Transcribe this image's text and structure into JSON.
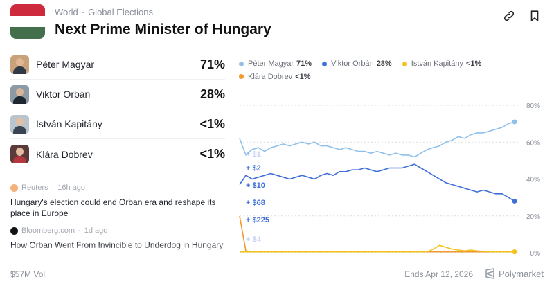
{
  "header": {
    "breadcrumb": [
      "World",
      "Global Elections"
    ],
    "title": "Next Prime Minister of Hungary",
    "flag_colors": [
      "#cd2a3e",
      "#ffffff",
      "#436f4d"
    ]
  },
  "outcomes": [
    {
      "name": "Péter Magyar",
      "pct": "71%",
      "color": "#8fc0ec"
    },
    {
      "name": "Viktor Orbán",
      "pct": "28%",
      "color": "#3f6fd8"
    },
    {
      "name": "István Kapitány",
      "pct": "<1%",
      "color": "#f2c31c"
    },
    {
      "name": "Klára Dobrev",
      "pct": "<1%",
      "color": "#f29a2e"
    }
  ],
  "news": [
    {
      "source": "Reuters",
      "age": "16h ago",
      "headline": "Hungary's election could end Orban era and reshape its place in Europe"
    },
    {
      "source": "Bloomberg.com",
      "age": "1d ago",
      "headline": "How Orban Went From Invincible to Underdog in Hungary"
    }
  ],
  "legend": [
    {
      "name": "Péter Magyar",
      "value": "71%",
      "color": "#8fc0ec"
    },
    {
      "name": "Viktor Orbán",
      "value": "28%",
      "color": "#3f6fd8"
    },
    {
      "name": "István Kapitány",
      "value": "<1%",
      "color": "#f2c31c"
    },
    {
      "name": "Klára Dobrev",
      "value": "<1%",
      "color": "#f29a2e"
    }
  ],
  "trades": [
    "+ $1",
    "+ $2",
    "+ $10",
    "+ $68",
    "+ $225",
    "+ $4"
  ],
  "chart_data": {
    "type": "line",
    "y_ticks": [
      "80%",
      "60%",
      "40%",
      "20%",
      "0%"
    ],
    "ylim": [
      0,
      80
    ],
    "grid": true,
    "series": [
      {
        "name": "Péter Magyar",
        "color": "#8fc0ec",
        "values": [
          62,
          53,
          56,
          57,
          55,
          57,
          58,
          59,
          58,
          59,
          60,
          59,
          60,
          58,
          58,
          57,
          56,
          57,
          56,
          55,
          55,
          54,
          55,
          54,
          53,
          54,
          53,
          53,
          52,
          54,
          56,
          57,
          58,
          60,
          61,
          63,
          62,
          64,
          65,
          65,
          66,
          67,
          68,
          70,
          71
        ]
      },
      {
        "name": "Viktor Orbán",
        "color": "#3f6fd8",
        "values": [
          37,
          42,
          40,
          41,
          42,
          43,
          42,
          41,
          40,
          41,
          42,
          41,
          40,
          42,
          43,
          42,
          44,
          44,
          45,
          45,
          46,
          45,
          44,
          45,
          46,
          46,
          46,
          47,
          48,
          46,
          44,
          42,
          40,
          38,
          37,
          36,
          35,
          34,
          33,
          34,
          33,
          32,
          32,
          30,
          28
        ]
      },
      {
        "name": "István Kapitány",
        "color": "#f2c31c",
        "values": [
          0.5,
          0.5,
          0.5,
          0.5,
          0.5,
          0.5,
          0.5,
          0.5,
          0.5,
          0.5,
          0.5,
          0.5,
          0.5,
          0.5,
          0.5,
          0.5,
          0.5,
          0.5,
          0.5,
          0.5,
          0.5,
          0.5,
          0.5,
          0.5,
          0.5,
          0.5,
          0.5,
          0.5,
          0.5,
          0.5,
          0.5,
          2,
          4,
          3,
          2,
          1.5,
          1,
          1.5,
          1,
          0.8,
          0.6,
          0.5,
          0.5,
          0.5,
          0.5
        ]
      },
      {
        "name": "Klára Dobrev",
        "color": "#f29a2e",
        "values": [
          20,
          1,
          0.6,
          0.5,
          0.5,
          0.5,
          0.5,
          0.5,
          0.5,
          0.5,
          0.5,
          0.5,
          0.5,
          0.5,
          0.5,
          0.5,
          0.5,
          0.5,
          0.5,
          0.5,
          0.5,
          0.5,
          0.5,
          0.5,
          0.5,
          0.5,
          0.5,
          0.5,
          0.5,
          0.5,
          0.5,
          0.5,
          0.5,
          0.5,
          0.5,
          0.5,
          0.5,
          0.5,
          0.5,
          0.5,
          0.5,
          0.5,
          0.5,
          0.5,
          0.5
        ]
      }
    ]
  },
  "footer": {
    "volume": "$57M Vol",
    "ends": "Ends Apr 12, 2026",
    "brand": "Polymarket"
  }
}
